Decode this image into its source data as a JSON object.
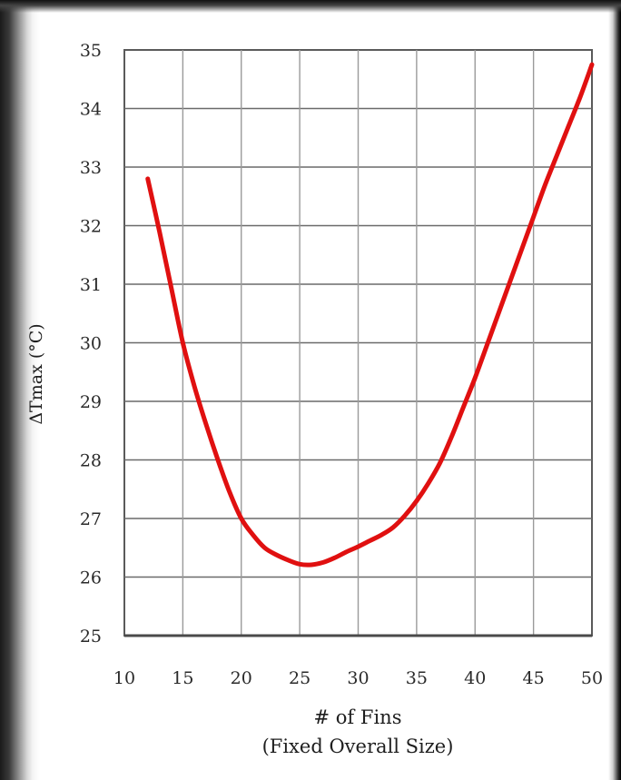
{
  "chart_data": {
    "type": "line",
    "title": "",
    "xlabel": "# of Fins",
    "xlabel_sub": "(Fixed Overall Size)",
    "ylabel": "ΔTmax (°C)",
    "xlim": [
      10,
      50
    ],
    "ylim": [
      25,
      35
    ],
    "xticks": [
      10,
      15,
      20,
      25,
      30,
      35,
      40,
      45,
      50
    ],
    "yticks": [
      25,
      26,
      27,
      28,
      29,
      30,
      31,
      32,
      33,
      34,
      35
    ],
    "grid": true,
    "legend": "none",
    "series": [
      {
        "color": "#e01010",
        "x": [
          12,
          13,
          14,
          15,
          16,
          17,
          18,
          19,
          20,
          21,
          22,
          23,
          24,
          25,
          26,
          27,
          28,
          29,
          30,
          31,
          32,
          33,
          34,
          35,
          36,
          37,
          38,
          39,
          40,
          41,
          42,
          43,
          44,
          45,
          46,
          47,
          48,
          49,
          50
        ],
        "y": [
          32.8,
          31.9,
          30.95,
          30.0,
          29.25,
          28.6,
          28.0,
          27.45,
          27.0,
          26.72,
          26.5,
          26.38,
          26.29,
          26.22,
          26.21,
          26.25,
          26.33,
          26.43,
          26.52,
          26.62,
          26.72,
          26.85,
          27.05,
          27.3,
          27.6,
          27.95,
          28.4,
          28.9,
          29.4,
          29.95,
          30.5,
          31.05,
          31.6,
          32.15,
          32.7,
          33.2,
          33.7,
          34.2,
          34.75
        ]
      }
    ]
  }
}
